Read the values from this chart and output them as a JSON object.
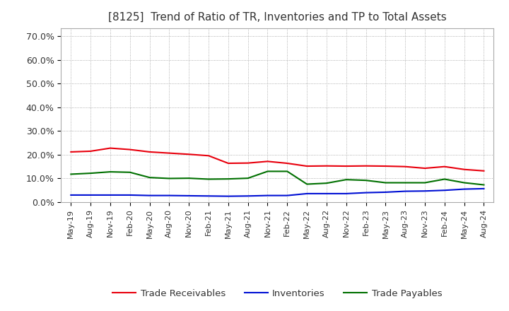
{
  "title": "[8125]  Trend of Ratio of TR, Inventories and TP to Total Assets",
  "title_fontsize": 11,
  "title_color": "#333333",
  "background_color": "#ffffff",
  "plot_bg_color": "#ffffff",
  "grid_color": "#999999",
  "ylim": [
    0.0,
    0.735
  ],
  "yticks": [
    0.0,
    0.1,
    0.2,
    0.3,
    0.4,
    0.5,
    0.6,
    0.7
  ],
  "dates": [
    "May-19",
    "Aug-19",
    "Nov-19",
    "Feb-20",
    "May-20",
    "Aug-20",
    "Nov-20",
    "Feb-21",
    "May-21",
    "Aug-21",
    "Nov-21",
    "Feb-22",
    "May-22",
    "Aug-22",
    "Nov-22",
    "Feb-23",
    "May-23",
    "Aug-23",
    "Nov-23",
    "Feb-24",
    "May-24",
    "Aug-24"
  ],
  "trade_receivables": [
    0.212,
    0.215,
    0.228,
    0.222,
    0.212,
    0.207,
    0.202,
    0.196,
    0.164,
    0.165,
    0.172,
    0.164,
    0.152,
    0.153,
    0.152,
    0.153,
    0.152,
    0.15,
    0.143,
    0.15,
    0.138,
    0.132
  ],
  "inventories": [
    0.03,
    0.03,
    0.03,
    0.03,
    0.028,
    0.028,
    0.027,
    0.026,
    0.025,
    0.026,
    0.028,
    0.028,
    0.036,
    0.036,
    0.036,
    0.04,
    0.042,
    0.046,
    0.047,
    0.05,
    0.055,
    0.057
  ],
  "trade_payables": [
    0.118,
    0.122,
    0.128,
    0.126,
    0.104,
    0.1,
    0.101,
    0.097,
    0.098,
    0.101,
    0.13,
    0.13,
    0.076,
    0.08,
    0.095,
    0.092,
    0.082,
    0.082,
    0.082,
    0.097,
    0.082,
    0.073
  ],
  "tr_color": "#e8000d",
  "inv_color": "#0010d4",
  "tp_color": "#007000",
  "line_width": 1.5,
  "legend_labels": [
    "Trade Receivables",
    "Inventories",
    "Trade Payables"
  ],
  "legend_fontsize": 9.5
}
